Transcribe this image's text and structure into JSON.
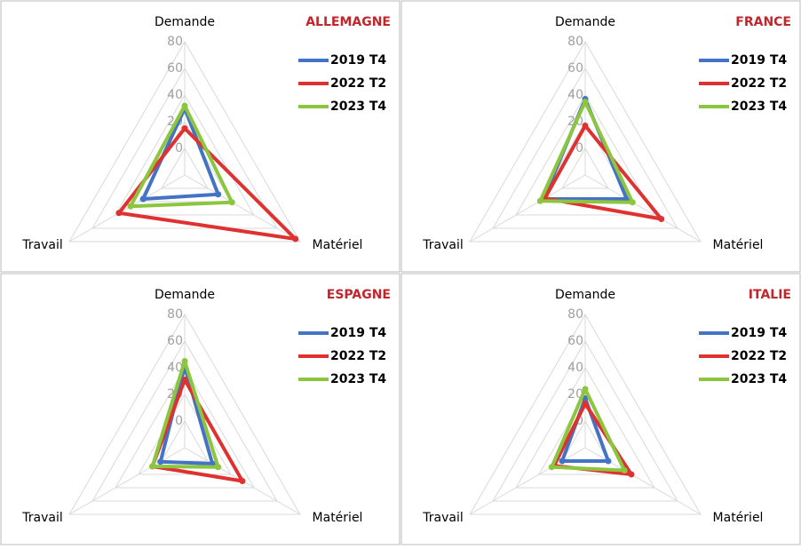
{
  "chart_data": [
    {
      "type": "radar",
      "title": "ALLEMAGNE",
      "categories": [
        "Demande",
        "Matériel",
        "Travail"
      ],
      "series": [
        {
          "name": "2019 T4",
          "color": "#4472c4",
          "values": [
            30,
            9,
            16
          ]
        },
        {
          "name": "2022 T2",
          "color": "#e03131",
          "values": [
            15,
            76,
            37
          ]
        },
        {
          "name": "2023 T4",
          "color": "#8cc63f",
          "values": [
            32,
            21,
            27
          ]
        }
      ],
      "ylim": [
        -20,
        80
      ],
      "yticks": [
        0,
        20,
        40,
        60,
        80
      ]
    },
    {
      "type": "radar",
      "title": "FRANCE",
      "categories": [
        "Demande",
        "Matériel",
        "Travail"
      ],
      "series": [
        {
          "name": "2019 T4",
          "color": "#4472c4",
          "values": [
            37,
            16,
            16
          ]
        },
        {
          "name": "2022 T2",
          "color": "#e03131",
          "values": [
            17,
            46,
            15
          ]
        },
        {
          "name": "2023 T4",
          "color": "#8cc63f",
          "values": [
            35,
            21,
            19
          ]
        }
      ],
      "ylim": [
        -20,
        80
      ],
      "yticks": [
        0,
        20,
        40,
        60,
        80
      ]
    },
    {
      "type": "radar",
      "title": "ESPAGNE",
      "categories": [
        "Demande",
        "Matériel",
        "Travail"
      ],
      "series": [
        {
          "name": "2019 T4",
          "color": "#4472c4",
          "values": [
            41,
            4,
            1
          ]
        },
        {
          "name": "2022 T2",
          "color": "#e03131",
          "values": [
            31,
            30,
            8
          ]
        },
        {
          "name": "2023 T4",
          "color": "#8cc63f",
          "values": [
            45,
            9,
            8
          ]
        }
      ],
      "ylim": [
        -20,
        80
      ],
      "yticks": [
        0,
        20,
        40,
        60,
        80
      ]
    },
    {
      "type": "radar",
      "title": "ITALIE",
      "categories": [
        "Demande",
        "Matériel",
        "Travail"
      ],
      "series": [
        {
          "name": "2019 T4",
          "color": "#4472c4",
          "values": [
            17,
            0,
            0
          ]
        },
        {
          "name": "2022 T2",
          "color": "#e03131",
          "values": [
            13,
            20,
            7
          ]
        },
        {
          "name": "2023 T4",
          "color": "#8cc63f",
          "values": [
            24,
            14,
            9
          ]
        }
      ],
      "ylim": [
        -20,
        80
      ],
      "yticks": [
        0,
        20,
        40,
        60,
        80
      ]
    }
  ]
}
